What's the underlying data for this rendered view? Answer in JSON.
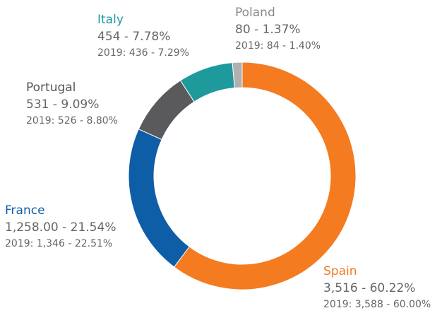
{
  "chart_data": {
    "type": "donut",
    "categories": [
      "Spain",
      "France",
      "Portugal",
      "Italy",
      "Poland"
    ],
    "values": [
      3516,
      1258,
      531,
      454,
      80
    ],
    "value_labels": [
      "3,516 - 60.22%",
      "1,258.00 - 21.54%",
      "531 - 9.09%",
      "454 - 7.78%",
      "80 - 1.37%"
    ],
    "prior_labels": [
      "2019: 3,588 - 60.00%",
      "2019: 1,346 - 22.51%",
      "2019: 526 - 8.80%",
      "2019: 436 - 7.29%",
      "2019: 84 - 1.40%"
    ],
    "colors": [
      "#f47b20",
      "#0d5ea6",
      "#5a5a5c",
      "#1e9a9c",
      "#b0b0b0"
    ],
    "label_colors": [
      "#f47b20",
      "#0d5ea6",
      "#555555",
      "#1e9a9c",
      "#8a8a8a"
    ]
  }
}
